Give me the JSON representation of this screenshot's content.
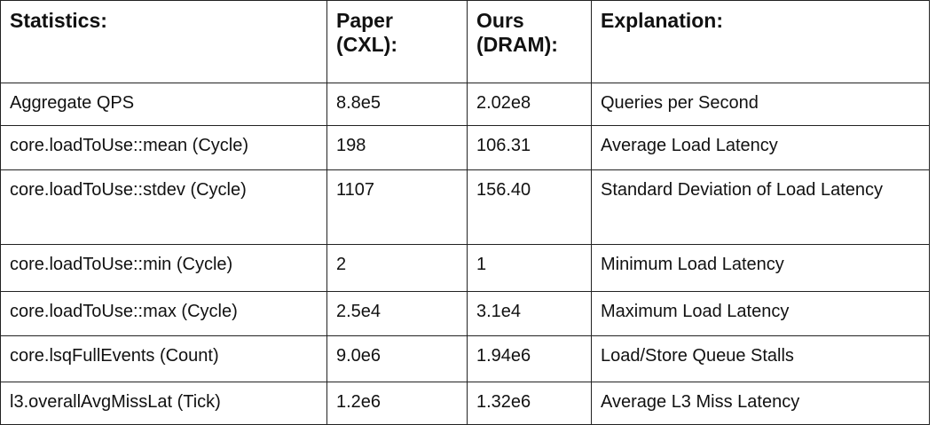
{
  "table": {
    "header": [
      "Statistics:",
      "Paper (CXL):",
      "Ours (DRAM):",
      "Explanation:"
    ],
    "rows": [
      [
        "Aggregate QPS",
        "8.8e5",
        "2.02e8",
        "Queries per Second"
      ],
      [
        "core.loadToUse::mean (Cycle)",
        "198",
        "106.31",
        "Average Load Latency"
      ],
      [
        "core.loadToUse::stdev (Cycle)",
        "1107",
        "156.40",
        "Standard Deviation of Load Latency"
      ],
      [
        "core.loadToUse::min (Cycle)",
        "2",
        "1",
        "Minimum Load Latency"
      ],
      [
        "core.loadToUse::max (Cycle)",
        "2.5e4",
        "3.1e4",
        "Maximum Load Latency"
      ],
      [
        "core.lsqFullEvents (Count)",
        "9.0e6",
        "1.94e6",
        "Load/Store Queue Stalls"
      ],
      [
        "l3.overallAvgMissLat (Tick)",
        "1.2e6",
        "1.32e6",
        "Average L3 Miss Latency"
      ]
    ]
  }
}
